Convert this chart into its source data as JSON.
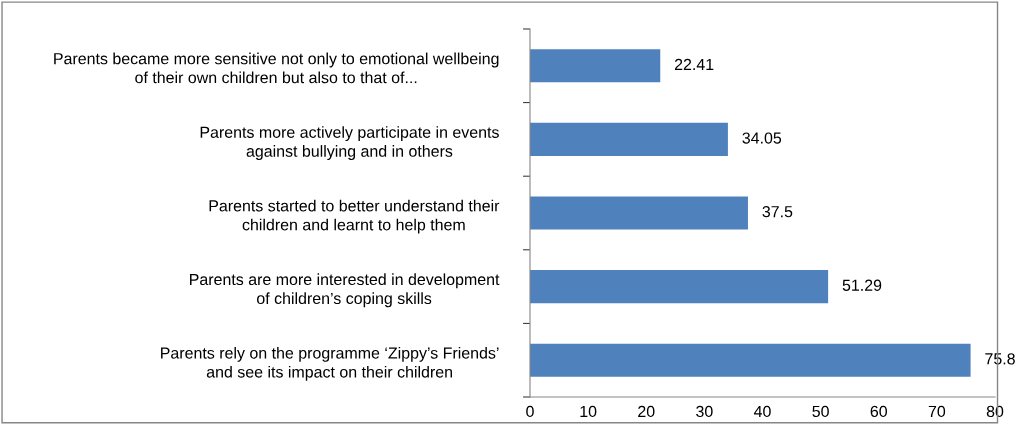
{
  "chart_data": {
    "type": "bar",
    "orientation": "horizontal",
    "categories": [
      "Parents became more sensitive not only to emotional wellbeing of their own children but also to that of...",
      "Parents more actively participate in events against bullying and in others",
      "Parents started to better understand their children and learnt to help them",
      "Parents are more interested in development of children’s coping skills",
      "Parents rely on the programme ‘Zippy’s Friends’ and see its impact on their children"
    ],
    "values": [
      22.41,
      34.05,
      37.5,
      51.29,
      75.8
    ],
    "color": "#4f81bd",
    "xlim": [
      0,
      80
    ],
    "xticks": [
      0,
      10,
      20,
      30,
      40,
      50,
      60,
      70,
      80
    ],
    "grid": false,
    "data_labels": true
  }
}
